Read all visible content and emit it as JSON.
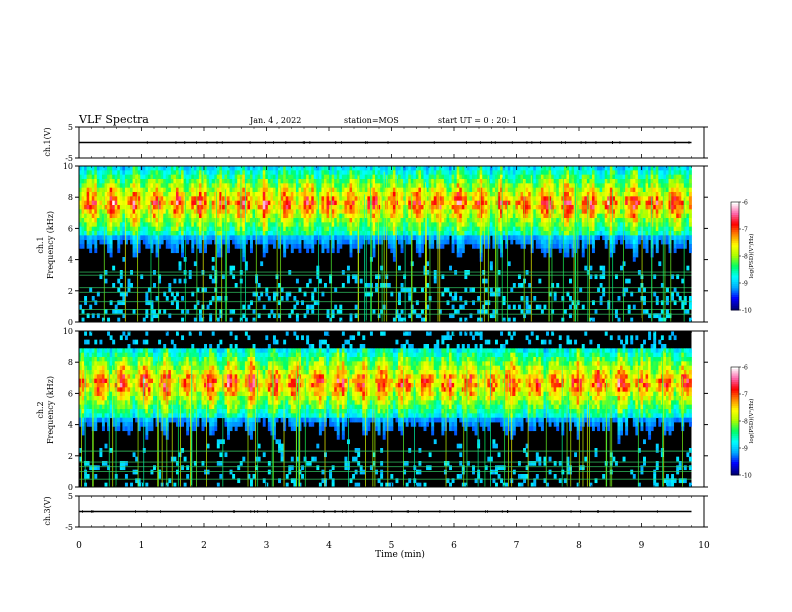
{
  "header": {
    "title": "VLF Spectra",
    "date": "Jan. 4 , 2022",
    "station": "station=MOS",
    "start": "start UT =  0 : 20: 1"
  },
  "chart_data": [
    {
      "type": "line",
      "panel": "ch1-waveform",
      "ylabel": "ch.1(V)",
      "ylim": [
        -5,
        5
      ],
      "yticks": [
        "5",
        "-5"
      ],
      "x": [
        0,
        9.8
      ],
      "values": [
        0,
        0
      ],
      "xlim": [
        0,
        10
      ]
    },
    {
      "type": "heatmap",
      "panel": "ch1-spectrogram",
      "ylabel": "ch.1\nFrequency (kHz)",
      "ylim": [
        0,
        10
      ],
      "yticks": [
        "0",
        "2",
        "4",
        "6",
        "8",
        "10"
      ],
      "xlim": [
        0,
        10
      ],
      "data_extent_min": 9.8,
      "band_khz": [
        5.5,
        9.7
      ],
      "colorbar": {
        "label": "log(PSD)(V²/Hz)",
        "range": [
          -10,
          -6
        ],
        "ticks": [
          "-6",
          "-7",
          "-8",
          "-9",
          "-10"
        ]
      },
      "lines_khz": [
        0.5,
        0.8,
        1.3,
        1.9,
        2.2,
        3.0,
        3.2
      ],
      "line_color": "#33cc66"
    },
    {
      "type": "heatmap",
      "panel": "ch2-spectrogram",
      "ylabel": "ch.2\nFrequency (kHz)",
      "ylim": [
        0,
        10
      ],
      "yticks": [
        "0",
        "2",
        "4",
        "6",
        "8",
        "10"
      ],
      "xlim": [
        0,
        10
      ],
      "data_extent_min": 9.8,
      "band_khz": [
        4.5,
        8.8
      ],
      "colorbar": {
        "label": "log(PSD)(V²/Hz)",
        "range": [
          -10,
          -6
        ],
        "ticks": [
          "-6",
          "-7",
          "-8",
          "-9",
          "-10"
        ]
      },
      "lines_khz": [
        0.5,
        1.0,
        1.3,
        1.6,
        2.3
      ],
      "line_color": "#33cc66"
    },
    {
      "type": "line",
      "panel": "ch3-waveform",
      "ylabel": "ch.3(V)",
      "ylim": [
        -5,
        5
      ],
      "yticks": [
        "5",
        "-5"
      ],
      "x": [
        0,
        9.8
      ],
      "values": [
        0,
        0
      ],
      "xlim": [
        0,
        10
      ],
      "xlabel": "Time (min)",
      "xticks": [
        "0",
        "1",
        "2",
        "3",
        "4",
        "5",
        "6",
        "7",
        "8",
        "9",
        "10"
      ]
    }
  ],
  "colors": {
    "scale": [
      "#00007a",
      "#0000ff",
      "#00aaff",
      "#00ffff",
      "#00ff66",
      "#aaff00",
      "#ffff00",
      "#ff8800",
      "#ff0000",
      "#ff66aa",
      "#ffffff"
    ],
    "background": "#000000"
  }
}
